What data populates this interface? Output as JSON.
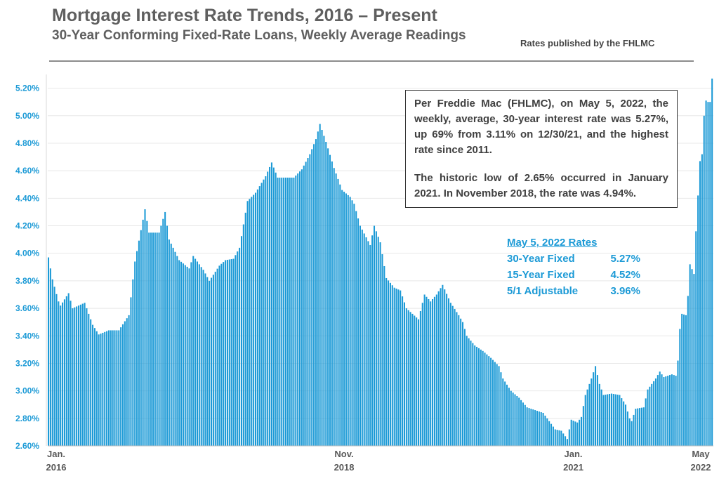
{
  "header": {
    "title": "Mortgage Interest Rate Trends, 2016 – Present",
    "subtitle": "30-Year Conforming Fixed-Rate Loans, Weekly Average Readings",
    "source": "Rates published by the FHLMC"
  },
  "note": {
    "paragraph1": "Per Freddie Mac (FHLMC), on May 5, 2022, the weekly, average, 30-year interest rate was 5.27%, up 69% from 3.11% on 12/30/21, and the highest rate since 2011.",
    "paragraph2": "The historic low of 2.65% occurred in January 2021. In November 2018, the rate was 4.94%."
  },
  "rates": {
    "heading": "May 5, 2022 Rates",
    "items": [
      {
        "label": "30-Year Fixed",
        "value": "5.27%"
      },
      {
        "label": "15-Year Fixed",
        "value": "4.52%"
      },
      {
        "label": "5/1 Adjustable",
        "value": "3.96%"
      }
    ]
  },
  "colors": {
    "bar": "#1c9ad6",
    "grid": "#e8e8e8",
    "tick_label": "#1c9ad6",
    "x_label": "#595959"
  },
  "chart_data": {
    "type": "bar",
    "title": "Mortgage Interest Rate Trends, 2016 – Present",
    "xlabel": "",
    "ylabel": "",
    "ylim": [
      2.6,
      5.3
    ],
    "grid": true,
    "y_ticks": [
      2.6,
      2.8,
      3.0,
      3.2,
      3.4,
      3.6,
      3.8,
      4.0,
      4.2,
      4.4,
      4.6,
      4.8,
      5.0,
      5.2
    ],
    "y_tick_labels": [
      "2.60%",
      "2.80%",
      "3.00%",
      "3.20%",
      "3.40%",
      "3.60%",
      "3.80%",
      "4.00%",
      "4.20%",
      "4.40%",
      "4.60%",
      "4.80%",
      "5.00%",
      "5.20%"
    ],
    "x_labels": [
      {
        "week_index": 0,
        "line1": "Jan.",
        "line2": "2016"
      },
      {
        "week_index": 147,
        "line1": "Nov.",
        "line2": "2018"
      },
      {
        "week_index": 261,
        "line1": "Jan.",
        "line2": "2021"
      },
      {
        "week_index": 330,
        "line1": "May",
        "line2": "2022"
      }
    ],
    "keypoints": [
      [
        0,
        3.97
      ],
      [
        2,
        3.81
      ],
      [
        5,
        3.65
      ],
      [
        6,
        3.62
      ],
      [
        10,
        3.71
      ],
      [
        12,
        3.6
      ],
      [
        18,
        3.64
      ],
      [
        22,
        3.48
      ],
      [
        25,
        3.41
      ],
      [
        30,
        3.44
      ],
      [
        35,
        3.44
      ],
      [
        40,
        3.55
      ],
      [
        43,
        3.94
      ],
      [
        48,
        4.32
      ],
      [
        50,
        4.15
      ],
      [
        55,
        4.15
      ],
      [
        58,
        4.3
      ],
      [
        60,
        4.1
      ],
      [
        65,
        3.95
      ],
      [
        70,
        3.89
      ],
      [
        72,
        3.98
      ],
      [
        77,
        3.88
      ],
      [
        80,
        3.8
      ],
      [
        85,
        3.91
      ],
      [
        88,
        3.95
      ],
      [
        92,
        3.96
      ],
      [
        95,
        4.04
      ],
      [
        99,
        4.38
      ],
      [
        103,
        4.44
      ],
      [
        108,
        4.56
      ],
      [
        111,
        4.66
      ],
      [
        114,
        4.55
      ],
      [
        118,
        4.55
      ],
      [
        122,
        4.55
      ],
      [
        126,
        4.61
      ],
      [
        130,
        4.72
      ],
      [
        133,
        4.83
      ],
      [
        135,
        4.94
      ],
      [
        138,
        4.81
      ],
      [
        142,
        4.62
      ],
      [
        146,
        4.46
      ],
      [
        150,
        4.41
      ],
      [
        152,
        4.36
      ],
      [
        155,
        4.2
      ],
      [
        160,
        4.06
      ],
      [
        162,
        4.2
      ],
      [
        165,
        4.08
      ],
      [
        168,
        3.82
      ],
      [
        172,
        3.75
      ],
      [
        175,
        3.73
      ],
      [
        178,
        3.6
      ],
      [
        181,
        3.56
      ],
      [
        184,
        3.52
      ],
      [
        187,
        3.7
      ],
      [
        190,
        3.65
      ],
      [
        193,
        3.7
      ],
      [
        196,
        3.77
      ],
      [
        200,
        3.64
      ],
      [
        204,
        3.55
      ],
      [
        206,
        3.5
      ],
      [
        208,
        3.4
      ],
      [
        212,
        3.33
      ],
      [
        216,
        3.29
      ],
      [
        220,
        3.24
      ],
      [
        224,
        3.18
      ],
      [
        226,
        3.09
      ],
      [
        230,
        3.0
      ],
      [
        234,
        2.95
      ],
      [
        238,
        2.88
      ],
      [
        242,
        2.86
      ],
      [
        246,
        2.84
      ],
      [
        248,
        2.8
      ],
      [
        252,
        2.72
      ],
      [
        255,
        2.71
      ],
      [
        257,
        2.67
      ],
      [
        258,
        2.65
      ],
      [
        260,
        2.79
      ],
      [
        263,
        2.77
      ],
      [
        265,
        2.81
      ],
      [
        267,
        2.97
      ],
      [
        270,
        3.09
      ],
      [
        272,
        3.18
      ],
      [
        274,
        3.05
      ],
      [
        276,
        2.97
      ],
      [
        280,
        2.98
      ],
      [
        284,
        2.97
      ],
      [
        287,
        2.9
      ],
      [
        289,
        2.8
      ],
      [
        290,
        2.78
      ],
      [
        292,
        2.87
      ],
      [
        296,
        2.88
      ],
      [
        298,
        3.01
      ],
      [
        302,
        3.09
      ],
      [
        304,
        3.14
      ],
      [
        306,
        3.1
      ],
      [
        310,
        3.12
      ],
      [
        312,
        3.11
      ],
      [
        313,
        3.22
      ],
      [
        314,
        3.45
      ],
      [
        315,
        3.56
      ],
      [
        317,
        3.55
      ],
      [
        318,
        3.69
      ],
      [
        319,
        3.92
      ],
      [
        321,
        3.85
      ],
      [
        322,
        4.16
      ],
      [
        323,
        4.42
      ],
      [
        324,
        4.67
      ],
      [
        325,
        4.72
      ],
      [
        326,
        5.0
      ],
      [
        327,
        5.11
      ],
      [
        328,
        5.1
      ],
      [
        329,
        5.1
      ],
      [
        330,
        5.27
      ]
    ]
  }
}
